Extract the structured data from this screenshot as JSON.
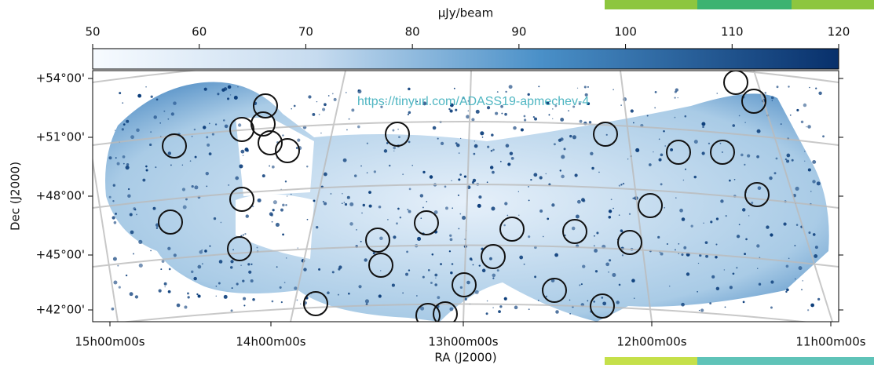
{
  "colorbar": {
    "label": "μJy/beam",
    "lim": [
      50,
      120
    ],
    "ticks": [
      50,
      60,
      70,
      80,
      90,
      100,
      110,
      120
    ]
  },
  "map": {
    "x_label": "RA (J2000)",
    "y_label": "Dec (J2000)",
    "x_ticks": [
      "15h00m00s",
      "14h00m00s",
      "13h00m00s",
      "12h00m00s",
      "11h00m00s"
    ],
    "y_ticks": [
      "+54°00'",
      "+51°00'",
      "+48°00'",
      "+45°00'",
      "+42°00'"
    ]
  },
  "annotation": "https://tinyurl.com/ADASS19-apmechev-4"
}
